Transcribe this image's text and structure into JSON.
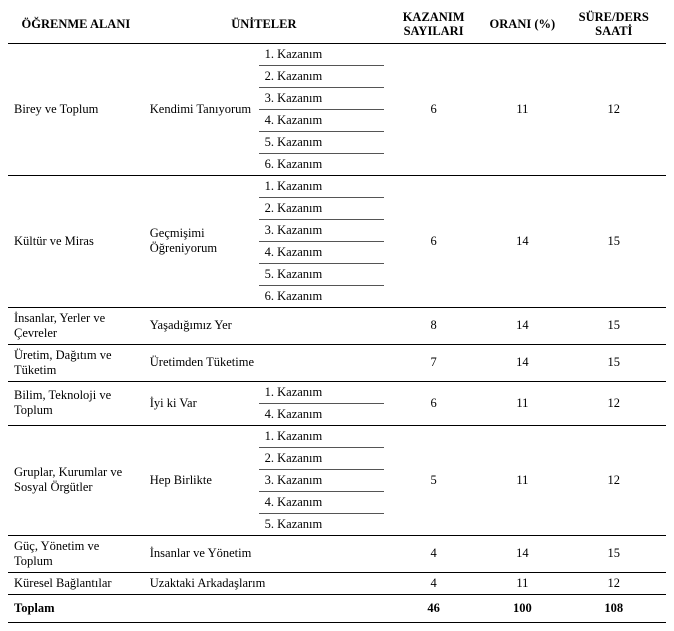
{
  "headers": {
    "area": "ÖĞRENME ALANI",
    "units": "ÜNİTELER",
    "counts": "KAZANIM SAYILARI",
    "ratio": "ORANI (%)",
    "duration": "SÜRE/DERS SAATİ"
  },
  "rows": [
    {
      "area": "Birey ve Toplum",
      "unit": "Kendimi Tanıyorum",
      "kazanims": [
        "1. Kazanım",
        "2. Kazanım",
        "3. Kazanım",
        "4. Kazanım",
        "5. Kazanım",
        "6. Kazanım"
      ],
      "count": "6",
      "ratio": "11",
      "duration": "12"
    },
    {
      "area": "Kültür ve Miras",
      "unit": "Geçmişimi Öğreniyorum",
      "kazanims": [
        "1. Kazanım",
        "2. Kazanım",
        "3. Kazanım",
        "4. Kazanım",
        "5. Kazanım",
        "6. Kazanım"
      ],
      "count": "6",
      "ratio": "14",
      "duration": "15"
    },
    {
      "area": "İnsanlar, Yerler ve Çevreler",
      "unit": "Yaşadığımız Yer",
      "kazanims": [],
      "count": "8",
      "ratio": "14",
      "duration": "15"
    },
    {
      "area": "Üretim, Dağıtım ve Tüketim",
      "unit": "Üretimden Tüketime",
      "kazanims": [],
      "count": "7",
      "ratio": "14",
      "duration": "15"
    },
    {
      "area": "Bilim, Teknoloji ve Toplum",
      "unit": "İyi ki Var",
      "kazanims": [
        "1. Kazanım",
        "4. Kazanım"
      ],
      "count": "6",
      "ratio": "11",
      "duration": "12"
    },
    {
      "area": "Gruplar, Kurumlar ve Sosyal Örgütler",
      "unit": "Hep Birlikte",
      "kazanims": [
        "1. Kazanım",
        "2. Kazanım",
        "3. Kazanım",
        "4. Kazanım",
        "5. Kazanım"
      ],
      "count": "5",
      "ratio": "11",
      "duration": "12"
    },
    {
      "area": "Güç, Yönetim ve Toplum",
      "unit": "İnsanlar ve Yönetim",
      "kazanims": [],
      "count": "4",
      "ratio": "14",
      "duration": "15"
    },
    {
      "area": "Küresel Bağlantılar",
      "unit": "Uzaktaki Arkadaşlarım",
      "kazanims": [],
      "count": "4",
      "ratio": "11",
      "duration": "12"
    }
  ],
  "totals": {
    "label": "Toplam",
    "count": "46",
    "ratio": "100",
    "duration": "108"
  }
}
